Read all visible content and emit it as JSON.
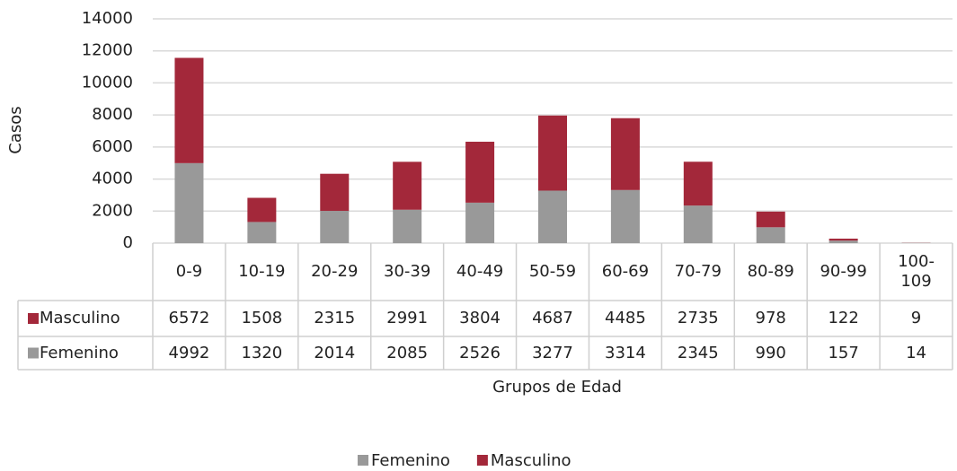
{
  "chart_data": {
    "type": "bar",
    "stacked": true,
    "x_label": "Grupos de Edad",
    "y_label": "Casos",
    "categories": [
      "0-9",
      "10-19",
      "20-29",
      "30-39",
      "40-49",
      "50-59",
      "60-69",
      "70-79",
      "80-89",
      "90-99",
      "100-109"
    ],
    "series": [
      {
        "name": "Femenino",
        "color": "#999999",
        "values": [
          4992,
          1320,
          2014,
          2085,
          2526,
          3277,
          3314,
          2345,
          990,
          157,
          14
        ]
      },
      {
        "name": "Masculino",
        "color": "#a3283a",
        "values": [
          6572,
          1508,
          2315,
          2991,
          3804,
          4687,
          4485,
          2735,
          978,
          122,
          9
        ]
      }
    ],
    "ylim": [
      0,
      14000
    ],
    "yticks": [
      0,
      2000,
      4000,
      6000,
      8000,
      10000,
      12000,
      14000
    ],
    "grid": true,
    "data_table": true,
    "legend": "bottom"
  }
}
